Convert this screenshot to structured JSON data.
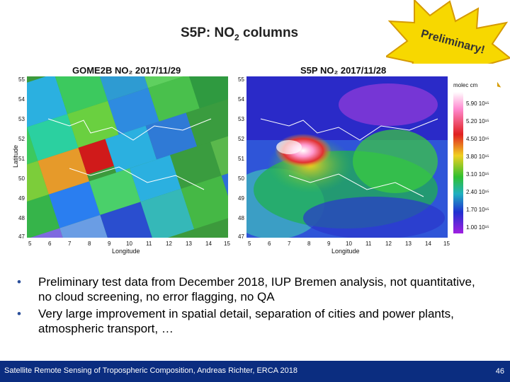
{
  "slide": {
    "title_main": "S5P: NO",
    "title_sub": "2",
    "title_end": " columns",
    "badge": "Preliminary!",
    "page_number": "46",
    "footer": "Satellite Remote Sensing of Tropospheric Composition, Andreas Richter, ERCA 2018"
  },
  "left_panel": {
    "title": "GOME2B NO₂ 2017/11/29",
    "y_ticks": [
      "55",
      "54",
      "53",
      "52",
      "51",
      "50",
      "49",
      "48",
      "47"
    ],
    "x_ticks": [
      "5",
      "6",
      "7",
      "8",
      "9",
      "10",
      "11",
      "12",
      "13",
      "14",
      "15"
    ],
    "xlabel": "Longitude",
    "ylabel": "Latitude"
  },
  "right_panel": {
    "title": "S5P NO₂ 2017/11/28",
    "y_ticks": [
      "55",
      "54",
      "53",
      "52",
      "51",
      "50",
      "49",
      "48",
      "47"
    ],
    "x_ticks": [
      "5",
      "6",
      "7",
      "8",
      "9",
      "10",
      "11",
      "12",
      "13",
      "14",
      "15"
    ],
    "xlabel": "Longitude",
    "colorbar_title": "molec cm",
    "colorbar_labels": [
      "5.90 10¹⁵",
      "5.20 10¹⁵",
      "4.50 10¹⁵",
      "3.80 10¹⁵",
      "3.10 10¹⁵",
      "2.40 10¹⁵",
      "1.70 10¹⁵",
      "1.00 10¹⁵"
    ]
  },
  "bullets": [
    "Preliminary test data from December 2018, IUP Bremen analysis, not quantitative, no cloud screening, no error flagging, no QA",
    "Very large improvement in spatial detail, separation of cities and power plants, atmospheric transport, …"
  ]
}
